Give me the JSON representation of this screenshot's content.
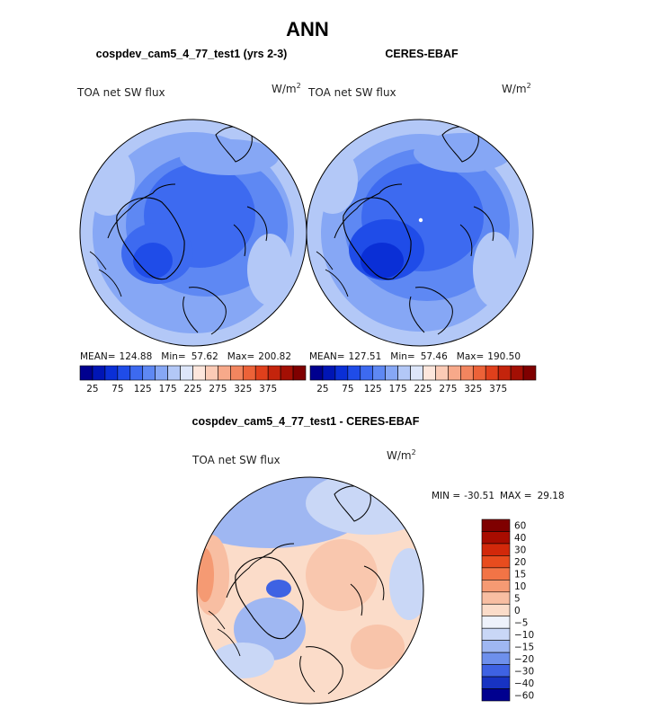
{
  "title": "ANN",
  "colors": {
    "cool_scale": [
      "#00008f",
      "#0015b5",
      "#0a2fd6",
      "#1f4ce8",
      "#3d6af0",
      "#5e88f3",
      "#86a7f5",
      "#b3c8f7",
      "#dde6fa"
    ],
    "warm_scale": [
      "#fde6dc",
      "#fbcbb6",
      "#f7a98a",
      "#f2855f",
      "#ec6238",
      "#e0401c",
      "#c4240c",
      "#a30f04",
      "#7f0000"
    ],
    "coast": "#000000",
    "background": "#ffffff"
  },
  "panels": [
    {
      "heading": "cospdev_cam5_4_77_test1 (yrs 2-3)",
      "label": "TOA net SW flux",
      "units": "W/m",
      "units_sup": "2",
      "stats": {
        "mean_label": "MEAN=",
        "mean": "124.88",
        "min_label": "Min=",
        "min": "57.62",
        "max_label": "Max=",
        "max": "200.82"
      },
      "colorbar_ticks": [
        "25",
        "75",
        "125",
        "175",
        "225",
        "275",
        "325",
        "375"
      ]
    },
    {
      "heading": "CERES-EBAF",
      "label": "TOA net SW flux",
      "units": "W/m",
      "units_sup": "2",
      "stats": {
        "mean_label": "MEAN=",
        "mean": "127.51",
        "min_label": "Min=",
        "min": "57.46",
        "max_label": "Max=",
        "max": "190.50"
      },
      "colorbar_ticks": [
        "25",
        "75",
        "125",
        "175",
        "225",
        "275",
        "325",
        "375"
      ]
    }
  ],
  "diff_panel": {
    "heading": "cospdev_cam5_4_77_test1 - CERES-EBAF",
    "label": "TOA net SW flux",
    "units": "W/m",
    "units_sup": "2",
    "stats": {
      "min_label": "MIN =",
      "min": "-30.51",
      "max_label": "MAX =",
      "max": "29.18"
    },
    "colorbar_ticks": [
      "60",
      "40",
      "30",
      "20",
      "15",
      "10",
      "5",
      "0",
      "−5",
      "−10",
      "−15",
      "−20",
      "−30",
      "−40",
      "−60"
    ],
    "colorbar_colors": [
      "#7f0000",
      "#a80c00",
      "#d2280a",
      "#e84c1e",
      "#f27446",
      "#f59a73",
      "#f8bea2",
      "#fbdcc9",
      "#eef2fb",
      "#c9d7f6",
      "#9fb7f2",
      "#6e90ec",
      "#3e62e3",
      "#1733c2",
      "#00008f"
    ]
  }
}
